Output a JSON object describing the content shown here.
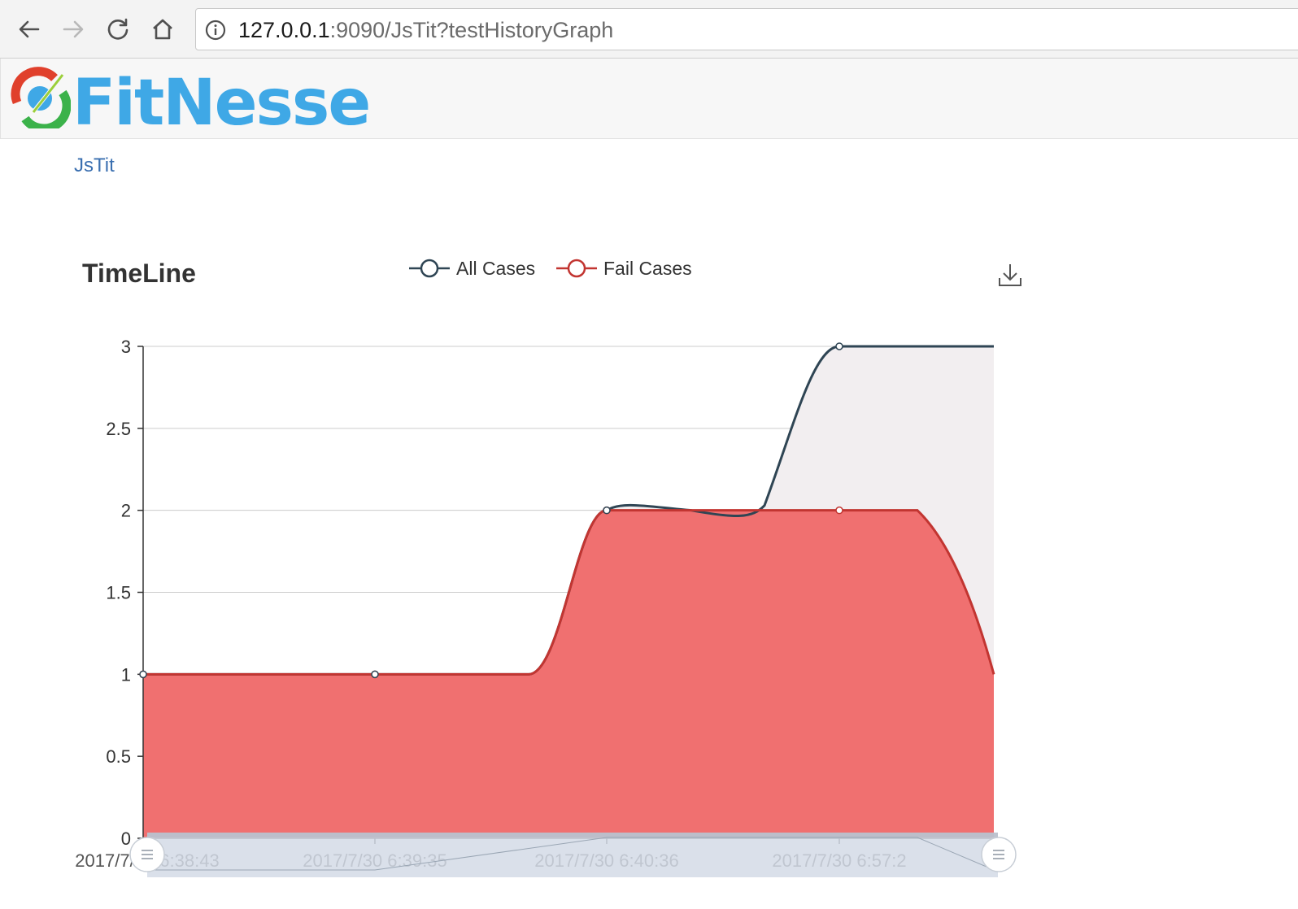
{
  "browser": {
    "url_host": "127.0.0.1",
    "url_rest": ":9090/JsTit?testHistoryGraph"
  },
  "header": {
    "logo_text": "FitNesse"
  },
  "breadcrumb": {
    "label": "JsTit"
  },
  "chart_data": {
    "type": "area",
    "title": "TimeLine",
    "legend_position": "top-center",
    "x": [
      "2017/7/30 6:38:43",
      "2017/7/30 6:39:35",
      "2017/7/30 6:40:36",
      "2017/7/30 6:57:2"
    ],
    "x_tick_labels": [
      "2017/7/30 6:38:43",
      "2017/7/30 6:39:35",
      "2017/7/30 6:40:36",
      "2017/7/30 6:57:2"
    ],
    "series": [
      {
        "name": "All Cases",
        "values": [
          1,
          1,
          2,
          3
        ],
        "color": "#2f4554"
      },
      {
        "name": "Fail Cases",
        "values": [
          1,
          1,
          2,
          2
        ],
        "color": "#c23531"
      }
    ],
    "yticks": [
      "0",
      "0.5",
      "1",
      "1.5",
      "2",
      "2.5",
      "3"
    ],
    "ylim": [
      0,
      3
    ],
    "grid": true
  },
  "colors": {
    "fail_fill": "#f07070",
    "all_fill": "#f2eef0",
    "link": "#3a6fb0",
    "zoom_bar": "#d3dbe6"
  }
}
